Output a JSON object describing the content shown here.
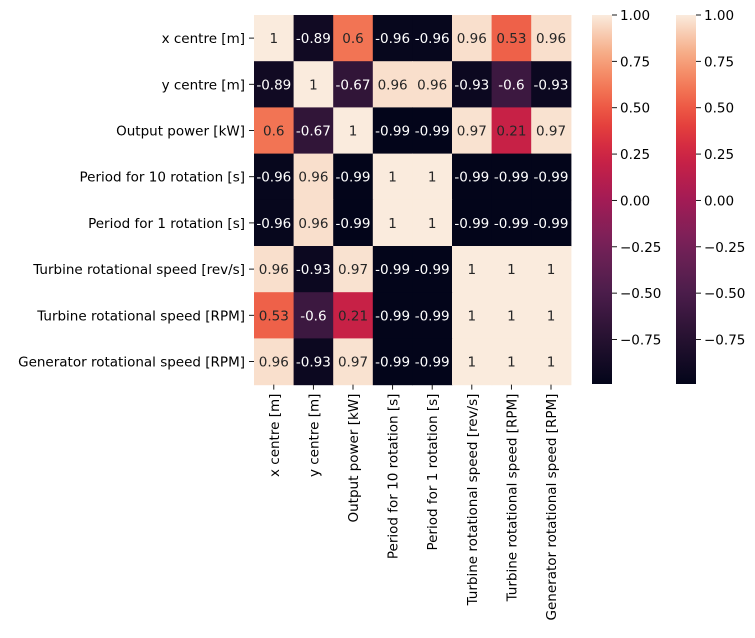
{
  "chart_data": {
    "type": "heatmap",
    "title": "",
    "xlabel": "",
    "ylabel": "",
    "row_labels": [
      "x centre [m]",
      "y centre [m]",
      "Output power [kW]",
      "Period for  10 rotation [s]",
      "Period for 1 rotation [s]",
      "Turbine rotational speed [rev/s]",
      "Turbine rotational speed [RPM]",
      "Generator rotational speed [RPM]"
    ],
    "col_labels": [
      "x centre [m]",
      "y centre [m]",
      "Output power [kW]",
      "Period for  10 rotation [s]",
      "Period for 1 rotation [s]",
      "Turbine rotational speed [rev/s]",
      "Turbine rotational speed [RPM]",
      "Generator rotational speed [RPM]"
    ],
    "values": [
      [
        1,
        -0.89,
        0.6,
        -0.96,
        -0.96,
        0.96,
        0.53,
        0.96
      ],
      [
        -0.89,
        1,
        -0.67,
        0.96,
        0.96,
        -0.93,
        -0.6,
        -0.93
      ],
      [
        0.6,
        -0.67,
        1,
        -0.99,
        -0.99,
        0.97,
        0.21,
        0.97
      ],
      [
        -0.96,
        0.96,
        -0.99,
        1,
        1,
        -0.99,
        -0.99,
        -0.99
      ],
      [
        -0.96,
        0.96,
        -0.99,
        1,
        1,
        -0.99,
        -0.99,
        -0.99
      ],
      [
        0.96,
        -0.93,
        0.97,
        -0.99,
        -0.99,
        1,
        1,
        1
      ],
      [
        0.53,
        -0.6,
        0.21,
        -0.99,
        -0.99,
        1,
        1,
        1
      ],
      [
        0.96,
        -0.93,
        0.97,
        -0.99,
        -0.99,
        1,
        1,
        1
      ]
    ],
    "annotations": [
      [
        "1",
        "-0.89",
        "0.6",
        "-0.96",
        "-0.96",
        "0.96",
        "0.53",
        "0.96"
      ],
      [
        "-0.89",
        "1",
        "-0.67",
        "0.96",
        "0.96",
        "-0.93",
        "-0.6",
        "-0.93"
      ],
      [
        "0.6",
        "-0.67",
        "1",
        "-0.99",
        "-0.99",
        "0.97",
        "0.21",
        "0.97"
      ],
      [
        "-0.96",
        "0.96",
        "-0.99",
        "1",
        "1",
        "-0.99",
        "-0.99",
        "-0.99"
      ],
      [
        "-0.96",
        "0.96",
        "-0.99",
        "1",
        "1",
        "-0.99",
        "-0.99",
        "-0.99"
      ],
      [
        "0.96",
        "-0.93",
        "0.97",
        "-0.99",
        "-0.99",
        "1",
        "1",
        "1"
      ],
      [
        "0.53",
        "-0.6",
        "0.21",
        "-0.99",
        "-0.99",
        "1",
        "1",
        "1"
      ],
      [
        "0.96",
        "-0.93",
        "0.97",
        "-0.99",
        "-0.99",
        "1",
        "1",
        "1"
      ]
    ],
    "colormap": "rocket",
    "vmin": -0.99,
    "vmax": 1,
    "colorbar_ticks": [
      "1.00",
      "0.75",
      "0.50",
      "0.25",
      "0.00",
      "−0.25",
      "−0.50",
      "−0.75"
    ],
    "colorbar_tick_values": [
      1.0,
      0.75,
      0.5,
      0.25,
      0.0,
      -0.25,
      -0.5,
      -0.75
    ],
    "colorbar_count": 2,
    "grid": false,
    "legend": "none"
  }
}
